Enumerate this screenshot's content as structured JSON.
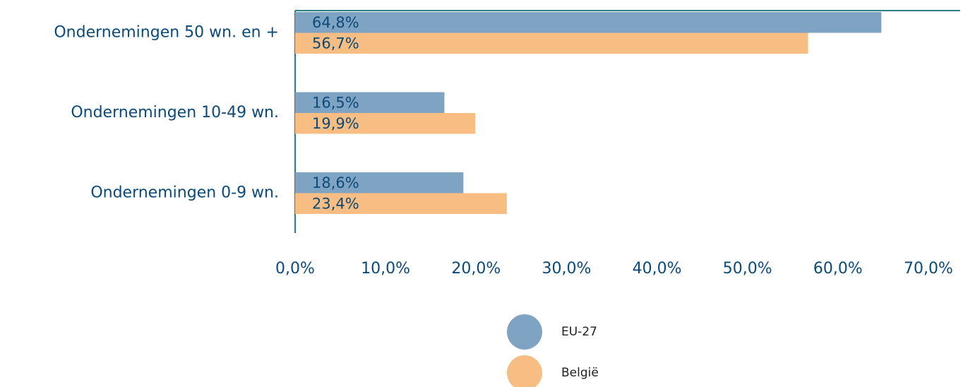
{
  "chart_data": {
    "type": "barh",
    "categories": [
      "Ondernemingen 50 wn. en +",
      "Ondernemingen 10-49 wn.",
      "Ondernemingen 0-9 wn."
    ],
    "series": [
      {
        "name": "EU-27",
        "color": "#7fa3c2",
        "values": [
          64.8,
          16.5,
          18.6
        ],
        "value_labels": [
          "64,8%",
          "16,5%",
          "18,6%"
        ]
      },
      {
        "name": "België",
        "color": "#f7bd82",
        "values": [
          56.7,
          19.9,
          23.4
        ],
        "value_labels": [
          "56,7%",
          "19,9%",
          "23,4%"
        ]
      }
    ],
    "xlim": [
      0,
      70
    ],
    "xticks": [
      {
        "value": 0,
        "label": "0,0%"
      },
      {
        "value": 10,
        "label": "10,0%"
      },
      {
        "value": 20,
        "label": "20,0%"
      },
      {
        "value": 30,
        "label": "30,0%"
      },
      {
        "value": 40,
        "label": "40,0%"
      },
      {
        "value": 50,
        "label": "50,0%"
      },
      {
        "value": 60,
        "label": "60,0%"
      },
      {
        "value": 70,
        "label": "70,0%"
      }
    ],
    "legend": "bottom"
  }
}
